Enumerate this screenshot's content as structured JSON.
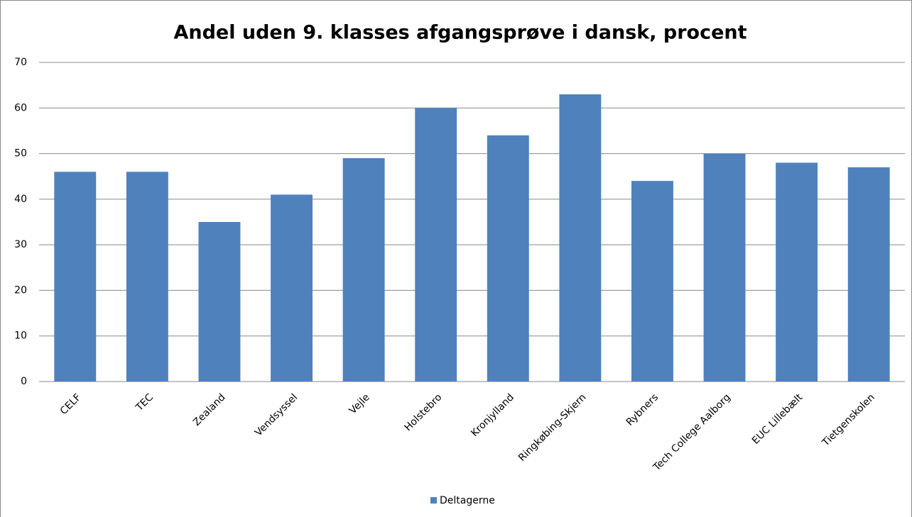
{
  "chart_data": {
    "type": "bar",
    "title": "Andel uden 9. klasses afgangsprøve i dansk, procent",
    "categories": [
      "CELF",
      "TEC",
      "Zealand",
      "Vendsyssel",
      "Vejle",
      "Holstebro",
      "Kronjylland",
      "Ringkøbing-Skjern",
      "Rybners",
      "Tech College Aalborg",
      "EUC Lillebælt",
      "Tietgenskolen"
    ],
    "series": [
      {
        "name": "Deltagerne",
        "color": "#4f81bd",
        "values": [
          46,
          46,
          35,
          41,
          49,
          60,
          54,
          63,
          44,
          50,
          48,
          47
        ]
      }
    ],
    "ylim": [
      0,
      70
    ],
    "yticks": [
      0,
      10,
      20,
      30,
      40,
      50,
      60,
      70
    ],
    "grid": true,
    "legend": "bottom"
  }
}
